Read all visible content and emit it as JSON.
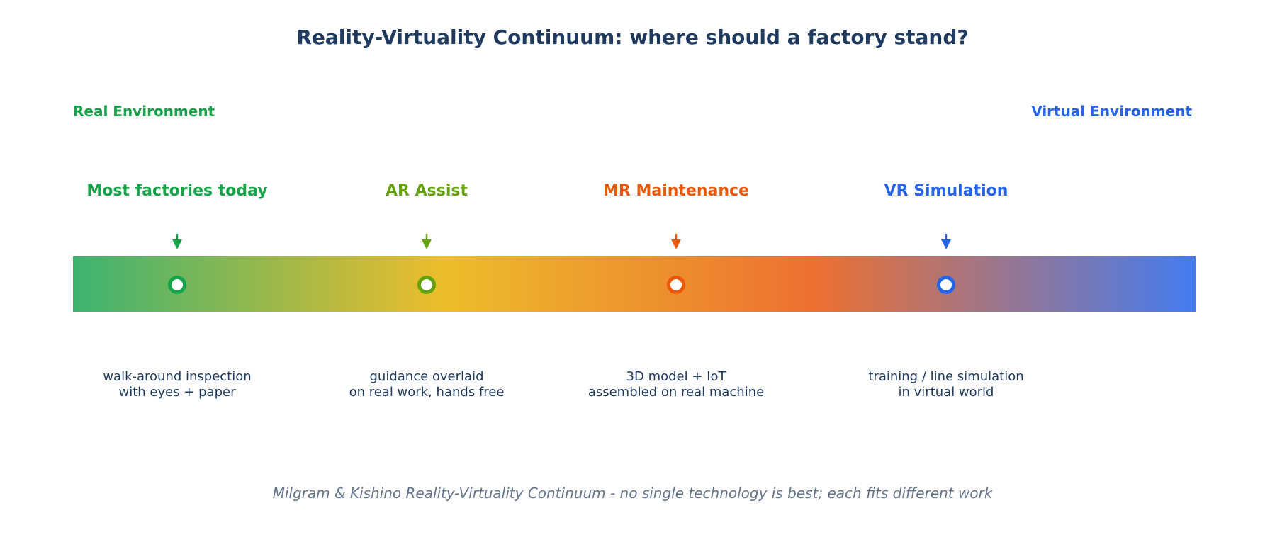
{
  "title": "Reality-Virtuality Continuum: where should a factory stand?",
  "ends": {
    "left": {
      "label": "Real Environment",
      "color": "#16a34a"
    },
    "right": {
      "label": "Virtual Environment",
      "color": "#2563eb"
    }
  },
  "bar_gradient": [
    "#3cb371",
    "#edbd2b",
    "#ed7030",
    "#447cf0"
  ],
  "markers": [
    {
      "title": "Most factories today",
      "color": "#16a34a",
      "desc": [
        "walk-around inspection",
        "with eyes + paper"
      ]
    },
    {
      "title": "AR Assist",
      "color": "#65a30d",
      "desc": [
        "guidance overlaid",
        "on real work, hands free"
      ]
    },
    {
      "title": "MR Maintenance",
      "color": "#ea580c",
      "desc": [
        "3D model + IoT",
        "assembled on real machine"
      ]
    },
    {
      "title": "VR Simulation",
      "color": "#2563eb",
      "desc": [
        "training / line simulation",
        "in virtual world"
      ]
    }
  ],
  "footer": "Milgram & Kishino Reality-Virtuality Continuum - no single technology is best; each fits different work"
}
